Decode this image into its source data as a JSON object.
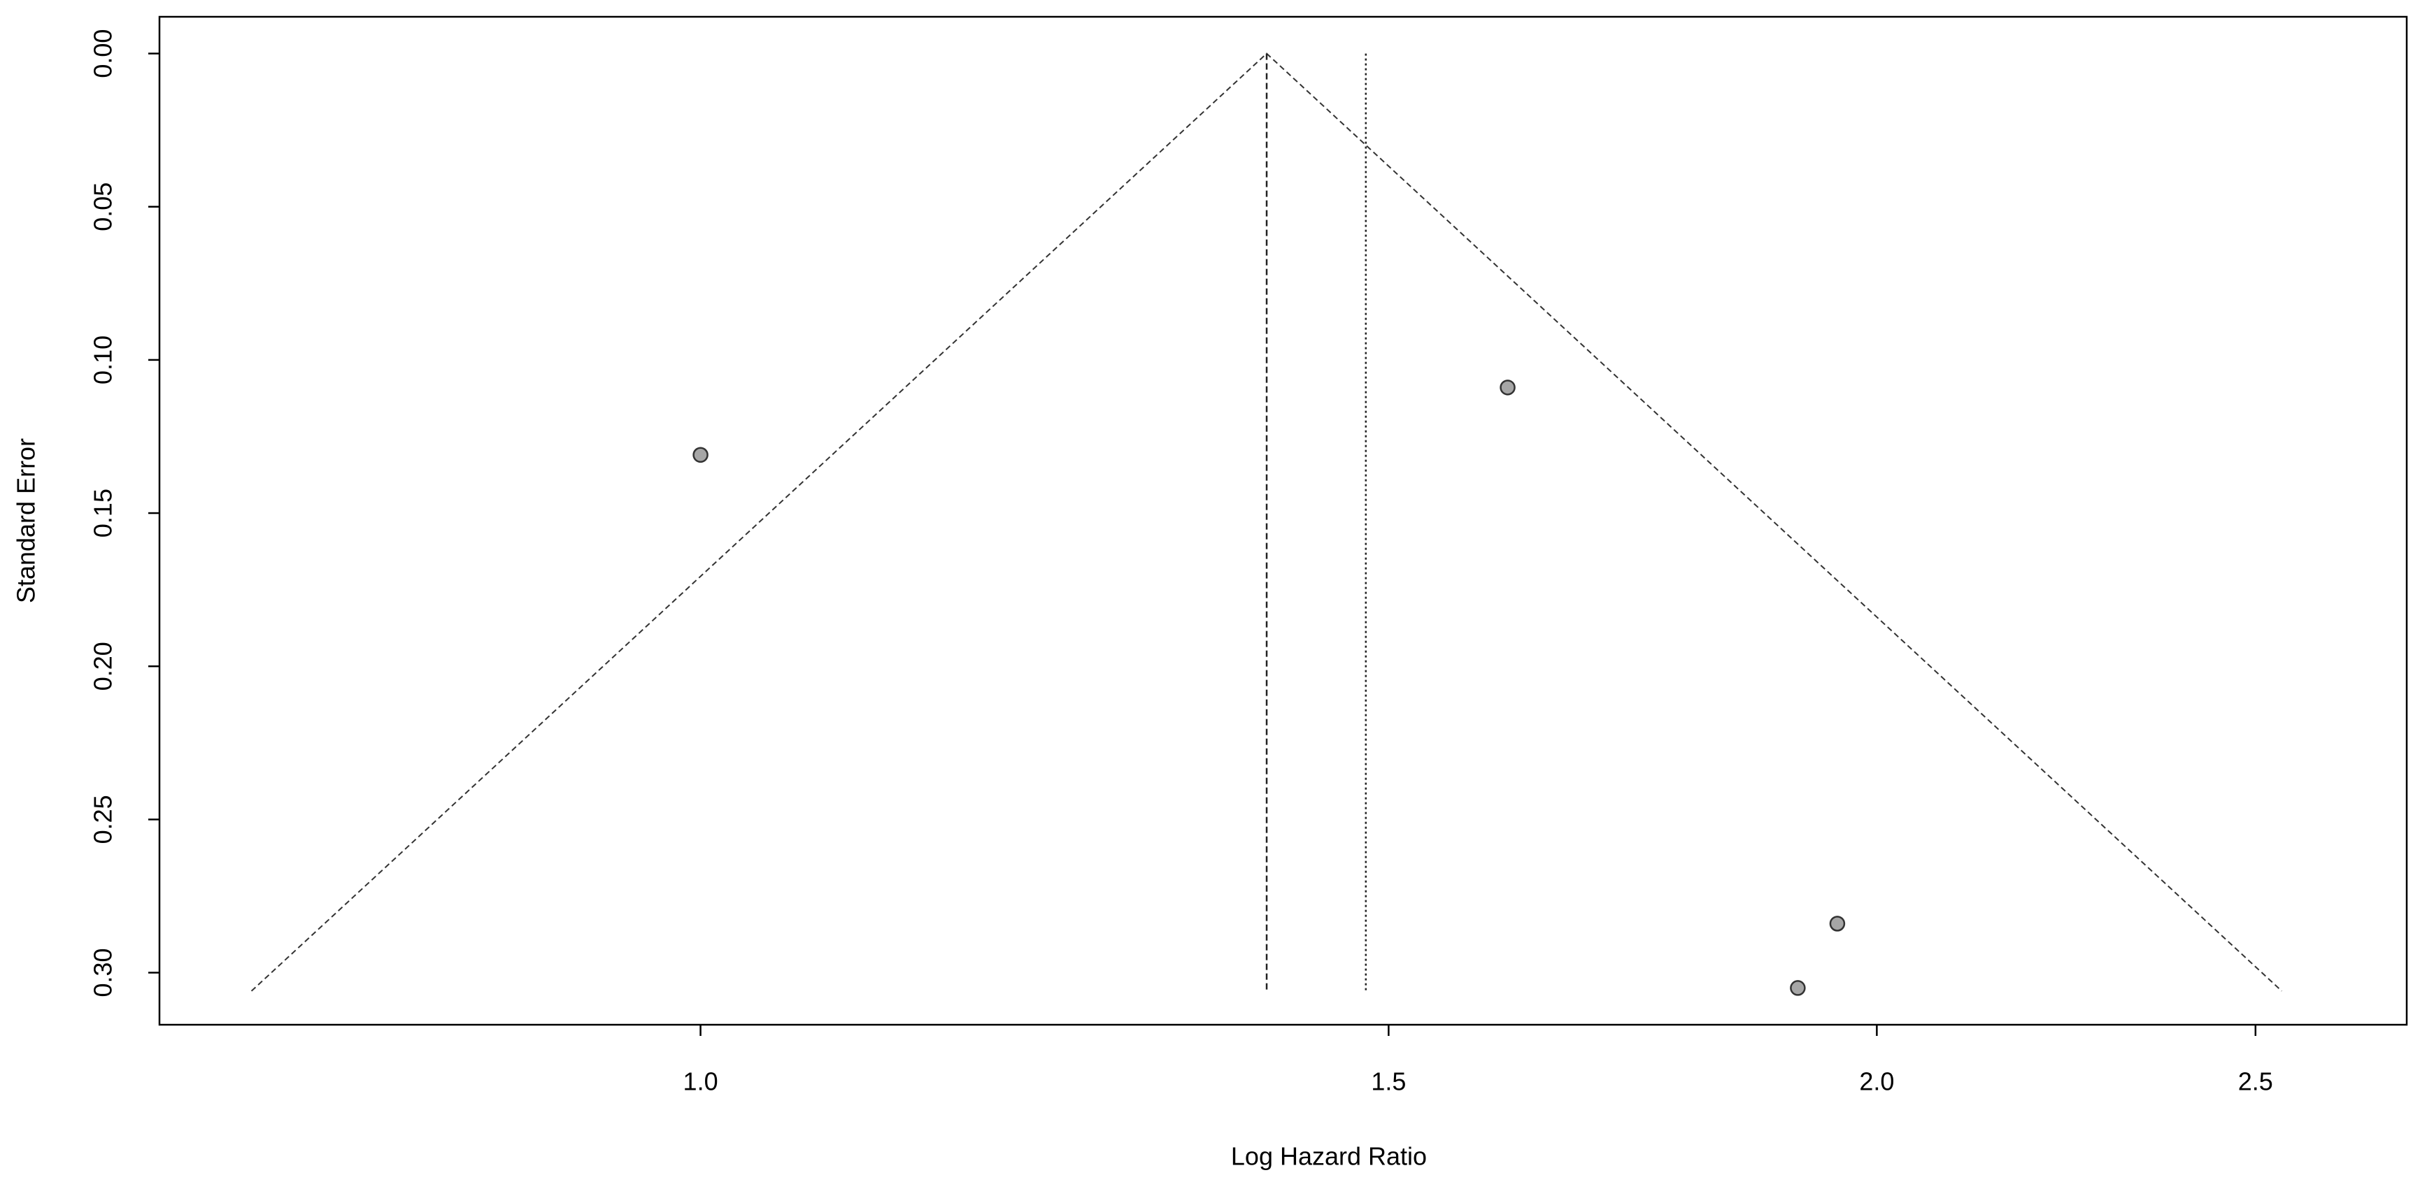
{
  "chart_data": {
    "type": "scatter",
    "xlabel": "Log Hazard Ratio",
    "ylabel": "Standard Error",
    "x": [
      1.0,
      1.609,
      1.954,
      1.909
    ],
    "values": [
      0.131,
      0.109,
      0.284,
      0.305
    ],
    "color": "#a6a6a6",
    "xlim": [
      0.727,
      2.733
    ],
    "log_x": true,
    "xticks": [
      {
        "value": 1.0,
        "label": "1.0"
      },
      1.5,
      {
        "value": 2.0,
        "label": "2.0"
      },
      2.5
    ],
    "ylim": [
      -0.012,
      0.317
    ],
    "y_reversed": true,
    "yticks": [
      {
        "value": 0,
        "label": "0.00"
      },
      {
        "value": 0.05,
        "label": "0.05"
      },
      {
        "value": 0.1,
        "label": "0.10"
      },
      {
        "value": 0.15,
        "label": "0.15"
      },
      {
        "value": 0.2,
        "label": "0.20"
      },
      {
        "value": 0.25,
        "label": "0.25"
      },
      {
        "value": 0.3,
        "label": "0.30"
      }
    ],
    "funnel": {
      "x": [
        0.7675,
        1.396,
        2.539
      ],
      "y": [
        0.306,
        0,
        0.306
      ]
    },
    "lines": [
      {
        "x": 1.396,
        "y": [
          0,
          0.306
        ],
        "dash": "dashed"
      },
      {
        "x": 1.48,
        "y": [
          0,
          0.306
        ],
        "dash": "dotted"
      }
    ]
  }
}
